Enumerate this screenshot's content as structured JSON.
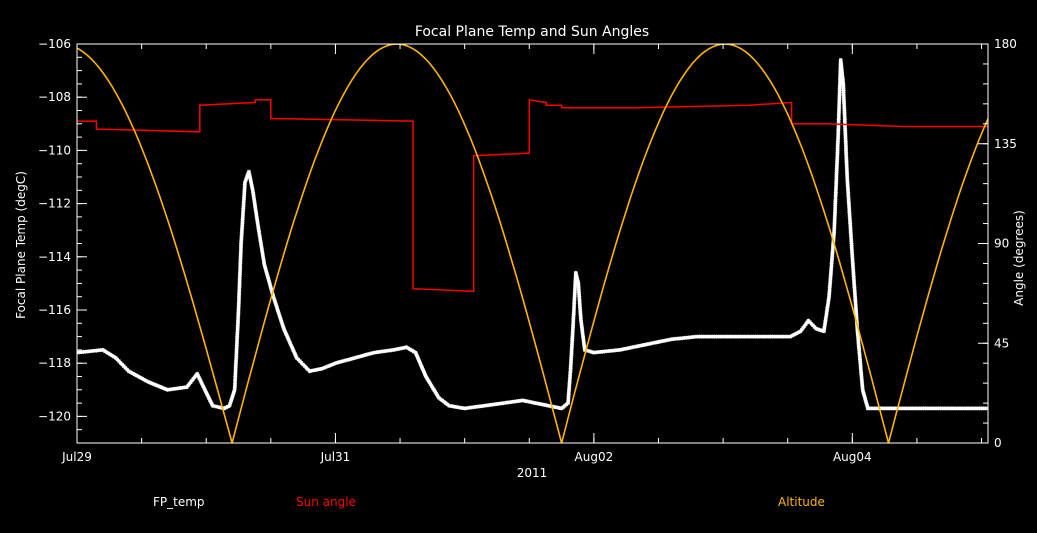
{
  "chart_data": {
    "type": "line",
    "title": "Focal Plane Temp and Sun Angles",
    "xlabel": "2011",
    "ylabel_left": "Focal Plane Temp (degC)",
    "ylabel_right": "Angle (degrees)",
    "x_tick_labels": [
      "Jul29",
      "Jul31",
      "Aug02",
      "Aug04"
    ],
    "x_tick_days": [
      0,
      2,
      4,
      6
    ],
    "xlim_days": [
      0,
      7.05
    ],
    "ylim_left": [
      -121,
      -106
    ],
    "left_ticks": [
      -106,
      -108,
      -110,
      -112,
      -114,
      -116,
      -118,
      -120
    ],
    "left_tick_labels": [
      "−106",
      "−108",
      "−110",
      "−112",
      "−114",
      "−116",
      "−118",
      "−120"
    ],
    "ylim_right": [
      0,
      180
    ],
    "right_ticks": [
      0,
      45,
      90,
      135,
      180
    ],
    "right_tick_labels": [
      "0",
      "45",
      "90",
      "135",
      "180"
    ],
    "colors": {
      "axes": "#ffffff",
      "fp_temp": "#ffffff",
      "sun_angle": "#ff0000",
      "altitude": "#ffb400"
    },
    "legend": [
      {
        "label": "FP_temp",
        "color": "#ffffff"
      },
      {
        "label": "Sun angle",
        "color": "#ff0000"
      },
      {
        "label": "Altitude",
        "color": "#ffb400"
      }
    ],
    "series": [
      {
        "name": "FP_temp",
        "axis": "left",
        "style": "markers",
        "points": [
          [
            0.0,
            -117.6
          ],
          [
            0.2,
            -117.5
          ],
          [
            0.3,
            -117.8
          ],
          [
            0.4,
            -118.3
          ],
          [
            0.55,
            -118.7
          ],
          [
            0.7,
            -119.0
          ],
          [
            0.85,
            -118.9
          ],
          [
            0.93,
            -118.4
          ],
          [
            1.0,
            -119.1
          ],
          [
            1.05,
            -119.6
          ],
          [
            1.14,
            -119.7
          ],
          [
            1.18,
            -119.6
          ],
          [
            1.22,
            -119.0
          ],
          [
            1.25,
            -116.0
          ],
          [
            1.27,
            -113.5
          ],
          [
            1.3,
            -111.2
          ],
          [
            1.33,
            -110.8
          ],
          [
            1.36,
            -111.5
          ],
          [
            1.4,
            -112.8
          ],
          [
            1.45,
            -114.3
          ],
          [
            1.52,
            -115.5
          ],
          [
            1.6,
            -116.7
          ],
          [
            1.7,
            -117.8
          ],
          [
            1.8,
            -118.3
          ],
          [
            1.9,
            -118.2
          ],
          [
            2.0,
            -118.0
          ],
          [
            2.15,
            -117.8
          ],
          [
            2.3,
            -117.6
          ],
          [
            2.45,
            -117.5
          ],
          [
            2.55,
            -117.4
          ],
          [
            2.62,
            -117.6
          ],
          [
            2.7,
            -118.5
          ],
          [
            2.8,
            -119.3
          ],
          [
            2.88,
            -119.6
          ],
          [
            3.0,
            -119.7
          ],
          [
            3.15,
            -119.6
          ],
          [
            3.3,
            -119.5
          ],
          [
            3.45,
            -119.4
          ],
          [
            3.55,
            -119.5
          ],
          [
            3.65,
            -119.6
          ],
          [
            3.75,
            -119.7
          ],
          [
            3.8,
            -119.5
          ],
          [
            3.82,
            -118.2
          ],
          [
            3.84,
            -116.5
          ],
          [
            3.86,
            -114.6
          ],
          [
            3.88,
            -115.0
          ],
          [
            3.9,
            -116.4
          ],
          [
            3.93,
            -117.5
          ],
          [
            4.0,
            -117.6
          ],
          [
            4.2,
            -117.5
          ],
          [
            4.4,
            -117.3
          ],
          [
            4.6,
            -117.1
          ],
          [
            4.8,
            -117.0
          ],
          [
            5.0,
            -117.0
          ],
          [
            5.2,
            -117.0
          ],
          [
            5.4,
            -117.0
          ],
          [
            5.52,
            -117.0
          ],
          [
            5.6,
            -116.8
          ],
          [
            5.66,
            -116.4
          ],
          [
            5.72,
            -116.7
          ],
          [
            5.78,
            -116.8
          ],
          [
            5.82,
            -115.5
          ],
          [
            5.86,
            -113.0
          ],
          [
            5.89,
            -109.5
          ],
          [
            5.91,
            -106.6
          ],
          [
            5.93,
            -107.5
          ],
          [
            5.96,
            -111.0
          ],
          [
            6.0,
            -114.0
          ],
          [
            6.04,
            -116.8
          ],
          [
            6.08,
            -119.0
          ],
          [
            6.12,
            -119.7
          ],
          [
            6.3,
            -119.7
          ],
          [
            6.6,
            -119.7
          ],
          [
            6.9,
            -119.7
          ],
          [
            7.05,
            -119.7
          ]
        ]
      },
      {
        "name": "Sun angle",
        "axis": "left",
        "style": "line",
        "points": [
          [
            0.0,
            -108.9
          ],
          [
            0.15,
            -108.9
          ],
          [
            0.15,
            -109.2
          ],
          [
            0.95,
            -109.3
          ],
          [
            0.95,
            -108.3
          ],
          [
            1.38,
            -108.2
          ],
          [
            1.38,
            -108.1
          ],
          [
            1.5,
            -108.1
          ],
          [
            1.5,
            -108.8
          ],
          [
            2.6,
            -108.9
          ],
          [
            2.6,
            -115.2
          ],
          [
            3.07,
            -115.3
          ],
          [
            3.07,
            -110.2
          ],
          [
            3.5,
            -110.1
          ],
          [
            3.5,
            -108.1
          ],
          [
            3.63,
            -108.2
          ],
          [
            3.63,
            -108.3
          ],
          [
            3.75,
            -108.3
          ],
          [
            3.75,
            -108.4
          ],
          [
            4.3,
            -108.4
          ],
          [
            5.2,
            -108.3
          ],
          [
            5.53,
            -108.2
          ],
          [
            5.53,
            -109.0
          ],
          [
            5.8,
            -109.0
          ],
          [
            6.4,
            -109.1
          ],
          [
            7.05,
            -109.1
          ]
        ]
      },
      {
        "name": "Altitude",
        "axis": "right",
        "style": "line",
        "shape": "arcs",
        "arc_zeros_days": [
          -1.44,
          1.2,
          3.75,
          6.28,
          8.83
        ],
        "peak_deg": 180
      }
    ]
  }
}
